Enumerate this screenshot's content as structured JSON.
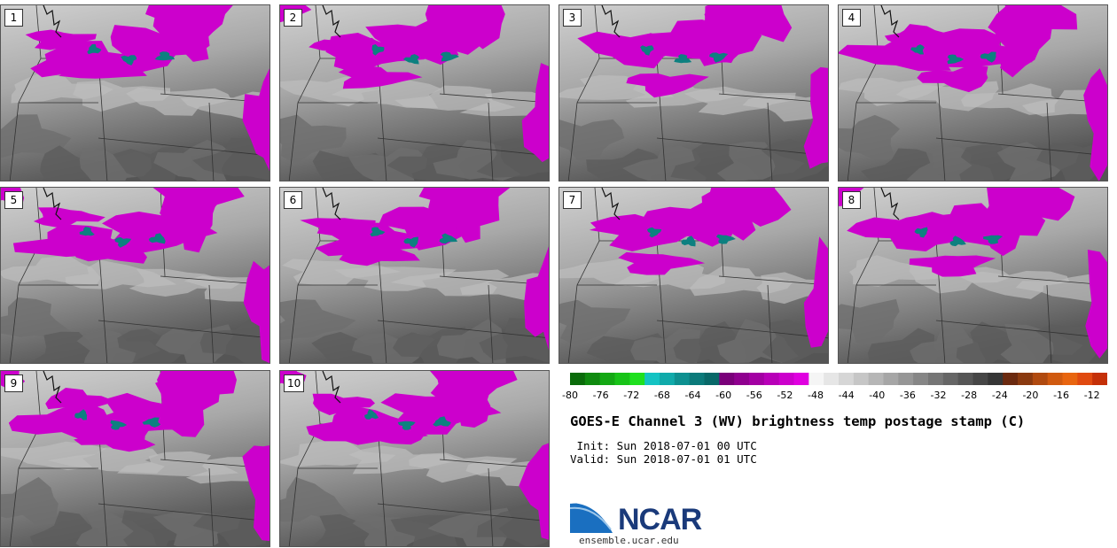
{
  "panels": [
    {
      "label": "1"
    },
    {
      "label": "2"
    },
    {
      "label": "3"
    },
    {
      "label": "4"
    },
    {
      "label": "5"
    },
    {
      "label": "6"
    },
    {
      "label": "7"
    },
    {
      "label": "8"
    },
    {
      "label": "9"
    },
    {
      "label": "10"
    }
  ],
  "colorbar": {
    "colors": [
      "#0a6b0a",
      "#0f8a0f",
      "#14a814",
      "#18c318",
      "#1fe01f",
      "#14c3c3",
      "#10aaaa",
      "#0d9090",
      "#0b7a7a",
      "#086868",
      "#7a007a",
      "#8f008f",
      "#a300a3",
      "#b800b8",
      "#cc00cc",
      "#e000e0",
      "#f5f5f5",
      "#e6e6e6",
      "#d6d6d6",
      "#c6c6c6",
      "#b6b6b6",
      "#a6a6a6",
      "#969696",
      "#868686",
      "#767676",
      "#666666",
      "#565656",
      "#464646",
      "#363636",
      "#6b2a10",
      "#8a3a10",
      "#b04a10",
      "#d05a10",
      "#e86510",
      "#e04a10",
      "#c43008"
    ],
    "ticks": [
      "-80",
      "-76",
      "-72",
      "-68",
      "-64",
      "-60",
      "-56",
      "-52",
      "-48",
      "-44",
      "-40",
      "-36",
      "-32",
      "-28",
      "-24",
      "-20",
      "-16",
      "-12"
    ]
  },
  "title": "GOES-E Channel 3 (WV) brightness temp postage stamp (C)",
  "init_line": " Init: Sun 2018-07-01 00 UTC",
  "valid_line": "Valid: Sun 2018-07-01 01 UTC",
  "logo": {
    "text": "NCAR",
    "url": "ensemble.ucar.edu"
  },
  "colors": {
    "moist_purple": "#cc00cc",
    "cold_teal": "#0d8080",
    "dry_gray": "#9a9a9a"
  }
}
